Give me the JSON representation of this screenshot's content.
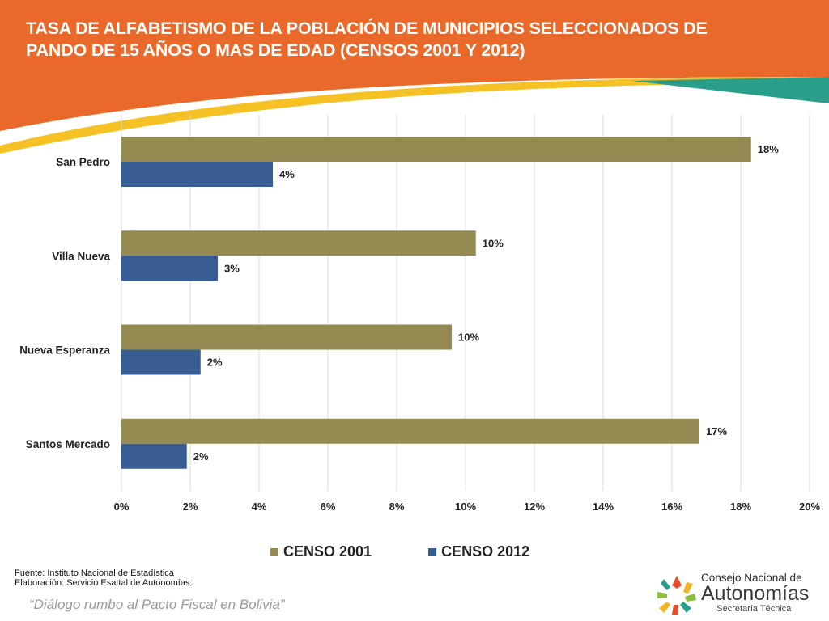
{
  "header": {
    "title_line1": "TASA DE ALFABETISMO DE LA POBLACIÓN DE MUNICIPIOS SELECCIONADOS DE",
    "title_line2": "PANDO DE 15 AÑOS O MAS DE EDAD (CENSOS 2001 Y 2012)"
  },
  "colors": {
    "banner_orange": "#E8692A",
    "banner_yellow": "#F5C124",
    "banner_teal": "#2A9E8A",
    "censo_2001": "#958A52",
    "censo_2012": "#385D95"
  },
  "chart_data": {
    "type": "bar",
    "orientation": "horizontal",
    "categories": [
      "San Pedro",
      "Villa Nueva",
      "Nueva Esperanza",
      "Santos Mercado"
    ],
    "series": [
      {
        "name": "CENSO 2001",
        "values": [
          18.3,
          10.3,
          9.6,
          16.8
        ],
        "labels": [
          "18%",
          "10%",
          "10%",
          "17%"
        ]
      },
      {
        "name": "CENSO 2012",
        "values": [
          4.4,
          2.8,
          2.3,
          1.9
        ],
        "labels": [
          "4%",
          "3%",
          "2%",
          "2%"
        ]
      }
    ],
    "xlim": [
      0,
      20
    ],
    "xticks": [
      "0%",
      "2%",
      "4%",
      "6%",
      "8%",
      "10%",
      "12%",
      "14%",
      "16%",
      "18%",
      "20%"
    ],
    "grid": true,
    "legend_position": "bottom"
  },
  "footer": {
    "source_line1": "Fuente: Instituto Nacional de Estadística",
    "source_line2": "Elaboración: Servicio Esattal de Autonomías",
    "slogan": "“Diálogo rumbo al Pacto Fiscal en Bolivia”",
    "logo_line1": "Consejo Nacional de",
    "logo_line2": "Autonomías",
    "logo_line3": "Secretaría Técnica"
  }
}
